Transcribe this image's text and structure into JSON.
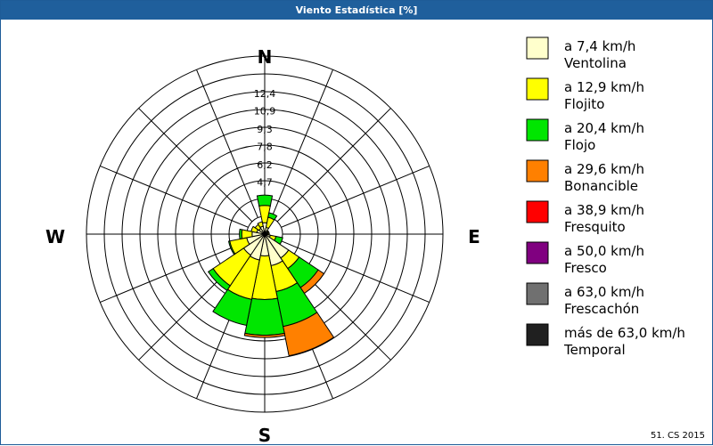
{
  "window": {
    "title": "Viento Estadística [%]"
  },
  "footer": {
    "text": "51. CS 2015"
  },
  "chart_data": {
    "type": "windrose",
    "title": "Viento Estadística [%]",
    "unit": "%",
    "directions": [
      "N",
      "NNE",
      "NE",
      "ENE",
      "E",
      "ESE",
      "SE",
      "SSE",
      "S",
      "SSW",
      "SW",
      "WSW",
      "W",
      "WNW",
      "NW",
      "NNW"
    ],
    "cardinal_labels": {
      "north": "N",
      "east": "E",
      "south": "S",
      "west": "W"
    },
    "radial_max": 15.5,
    "radial_tick_labels": [
      "4,7",
      "6,2",
      "7,8",
      "9,3",
      "10,9",
      "12,4"
    ],
    "radial_tick_values": [
      4.7,
      6.2,
      7.8,
      9.3,
      10.9,
      12.4
    ],
    "grid": true,
    "legend_position": "right",
    "series": [
      {
        "name": "Ventolina",
        "label": "a 7,4 km/h",
        "color": "#ffffcc",
        "values": [
          1.0,
          0.6,
          0.3,
          0.3,
          0.3,
          0.5,
          2.5,
          2.8,
          1.9,
          2.3,
          2.2,
          1.6,
          1.1,
          0.7,
          0.6,
          0.7
        ]
      },
      {
        "name": "Flojito",
        "label": "a 12,9 km/h",
        "color": "#ffff00",
        "values": [
          1.5,
          0.9,
          0.1,
          0.1,
          0.1,
          0.5,
          1.1,
          2.3,
          3.8,
          3.5,
          3.2,
          1.5,
          0.9,
          0.5,
          0.4,
          0.4
        ]
      },
      {
        "name": "Flojo",
        "label": "a 20,4 km/h",
        "color": "#00e600",
        "values": [
          0.9,
          0.4,
          0.0,
          0.0,
          0.0,
          0.6,
          2.0,
          3.1,
          3.1,
          2.3,
          0.5,
          0.1,
          0.2,
          0.0,
          0.0,
          0.0
        ]
      },
      {
        "name": "Bonancible",
        "label": "a 29,6 km/h",
        "color": "#ff8000",
        "values": [
          0.0,
          0.0,
          0.0,
          0.0,
          0.0,
          0.0,
          0.6,
          2.6,
          0.2,
          0.0,
          0.0,
          0.0,
          0.0,
          0.0,
          0.0,
          0.0
        ]
      },
      {
        "name": "Fresquito",
        "label": "a 38,9 km/h",
        "color": "#ff0000",
        "values": [
          0,
          0,
          0,
          0,
          0,
          0,
          0,
          0,
          0,
          0,
          0,
          0,
          0,
          0,
          0,
          0
        ]
      },
      {
        "name": "Fresco",
        "label": "a 50,0 km/h",
        "color": "#800080",
        "values": [
          0,
          0,
          0,
          0,
          0,
          0,
          0,
          0,
          0,
          0,
          0,
          0,
          0,
          0,
          0,
          0
        ]
      },
      {
        "name": "Frescachón",
        "label": "a 63,0 km/h",
        "color": "#707070",
        "values": [
          0,
          0,
          0,
          0,
          0,
          0,
          0,
          0,
          0,
          0,
          0,
          0,
          0,
          0,
          0,
          0
        ]
      },
      {
        "name": "Temporal",
        "label": "más de 63,0 km/h",
        "color": "#202020",
        "values": [
          0,
          0,
          0,
          0,
          0,
          0,
          0,
          0,
          0,
          0,
          0,
          0,
          0,
          0,
          0,
          0
        ]
      }
    ]
  }
}
